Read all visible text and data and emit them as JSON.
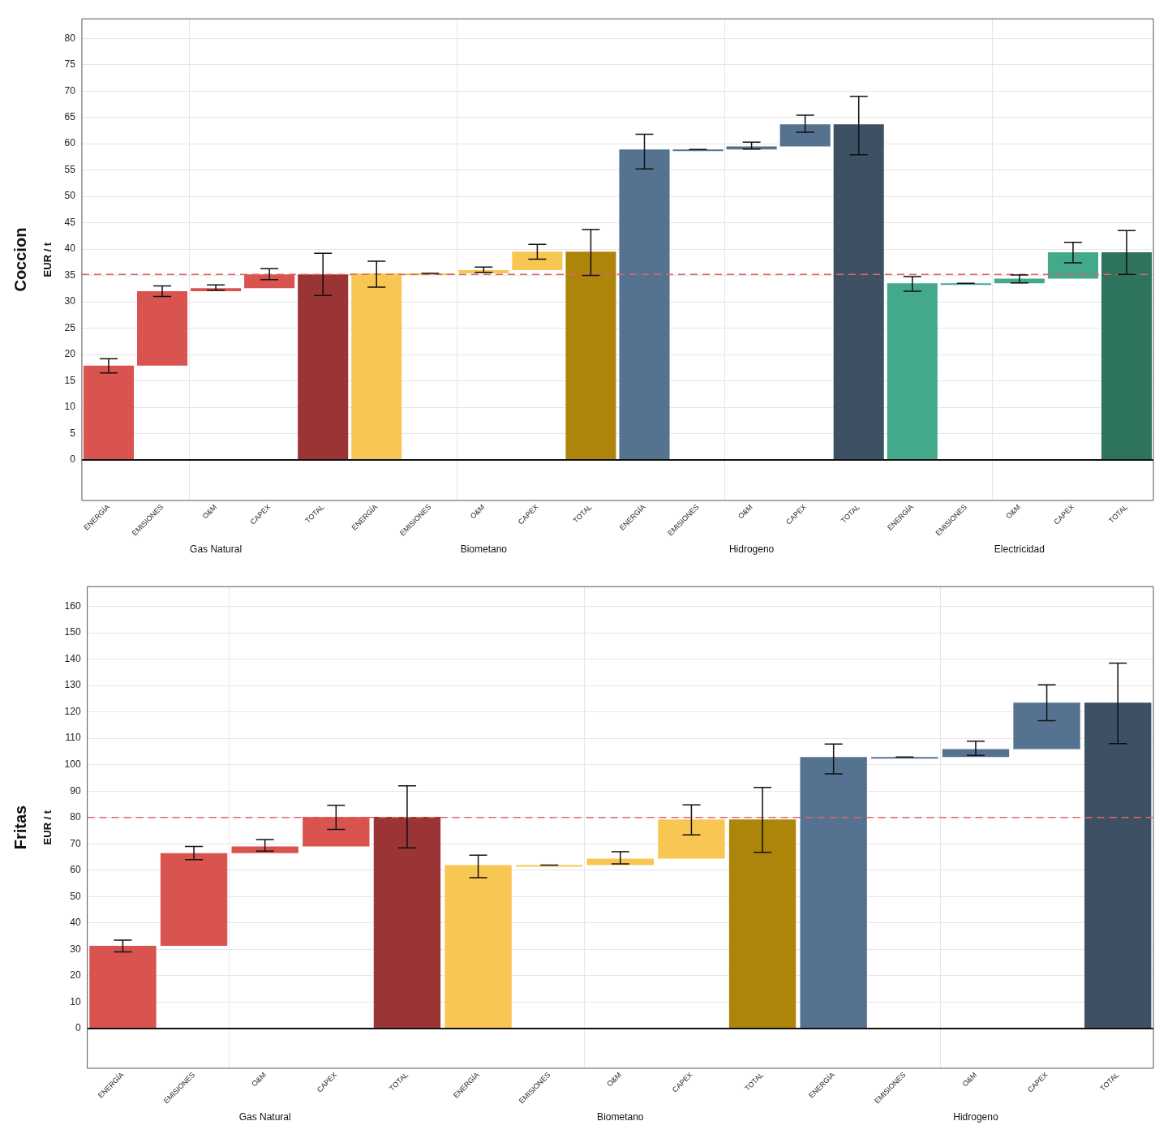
{
  "chart_data": [
    {
      "type": "bar",
      "title": "Coccion",
      "ylabel": "EUR / t",
      "categories": [
        "ENERGÍA",
        "EMISIONES",
        "O&M",
        "CAPEX",
        "TOTAL",
        "ENERGÍA",
        "EMISIONES",
        "O&M",
        "CAPEX",
        "TOTAL",
        "ENERGÍA",
        "EMISIONES",
        "O&M",
        "CAPEX",
        "TOTAL",
        "ENERGÍA",
        "EMISIONES",
        "O&M",
        "CAPEX",
        "TOTAL"
      ],
      "values": [
        17.9,
        14.1,
        0.6,
        2.6,
        35.2,
        35.4,
        0,
        0.6,
        3.5,
        39.5,
        58.9,
        0,
        0.6,
        4.2,
        63.7,
        33.5,
        0,
        0.9,
        5.0,
        39.4
      ],
      "base": [
        0,
        17.9,
        32.0,
        32.6,
        0,
        0,
        35.4,
        35.4,
        36.0,
        0,
        0,
        58.9,
        58.9,
        59.5,
        0,
        0,
        33.5,
        33.5,
        34.4,
        0
      ],
      "errors": [
        [
          16.5,
          19.2
        ],
        [
          31.0,
          33.0
        ],
        [
          32.2,
          33.2
        ],
        [
          34.2,
          36.3
        ],
        [
          31.2,
          39.2
        ],
        [
          32.8,
          37.7
        ],
        [
          35.4,
          35.4
        ],
        [
          35.6,
          36.6
        ],
        [
          38.1,
          40.9
        ],
        [
          35.0,
          43.7
        ],
        [
          55.2,
          61.8
        ],
        [
          58.9,
          58.9
        ],
        [
          59.0,
          60.3
        ],
        [
          62.2,
          65.4
        ],
        [
          57.9,
          69.0
        ],
        [
          32.0,
          34.8
        ],
        [
          33.5,
          33.5
        ],
        [
          33.6,
          35.1
        ],
        [
          37.4,
          41.3
        ],
        [
          35.2,
          43.5
        ]
      ],
      "colors": [
        "#d9534f",
        "#d9534f",
        "#d9534f",
        "#d9534f",
        "#9b3434",
        "#f8c652",
        "#f8c652",
        "#f8c652",
        "#f8c652",
        "#ad850a",
        "#557390",
        "#557390",
        "#557390",
        "#557390",
        "#3e5063",
        "#43a98a",
        "#43a98a",
        "#43a98a",
        "#43a98a",
        "#2e735e"
      ],
      "ylim": [
        -7.7,
        83.7
      ],
      "yticks": [
        0,
        5,
        10,
        15,
        20,
        25,
        30,
        35,
        40,
        45,
        50,
        55,
        60,
        65,
        70,
        75,
        80
      ],
      "ref_lines": [
        {
          "axis": "y",
          "value": 35.2,
          "color": "#e06666",
          "line_style": "dashed"
        }
      ],
      "grid": true,
      "legend": false,
      "annotations": [
        "Gas Natural",
        "Biometano",
        "Hidrogeno",
        "Electricidad"
      ]
    },
    {
      "type": "bar",
      "title": "Fritas",
      "ylabel": "EUR / t",
      "categories": [
        "ENERGÍA",
        "EMISIONES",
        "O&M",
        "CAPEX",
        "TOTAL",
        "ENERGÍA",
        "EMISIONES",
        "O&M",
        "CAPEX",
        "TOTAL",
        "ENERGÍA",
        "EMISIONES",
        "O&M",
        "CAPEX",
        "TOTAL"
      ],
      "values": [
        31.3,
        35.2,
        2.5,
        11.2,
        80.2,
        61.9,
        0,
        2.5,
        14.8,
        79.2,
        102.9,
        0,
        3.0,
        17.6,
        123.5
      ],
      "base": [
        0,
        31.3,
        66.5,
        69.0,
        0,
        0,
        61.9,
        61.9,
        64.4,
        0,
        0,
        102.9,
        102.9,
        105.9,
        0
      ],
      "errors": [
        [
          29.0,
          33.5
        ],
        [
          64.0,
          69.0
        ],
        [
          67.2,
          71.6
        ],
        [
          75.5,
          84.6
        ],
        [
          68.5,
          92.0
        ],
        [
          57.2,
          65.7
        ],
        [
          61.9,
          61.9
        ],
        [
          62.4,
          67.0
        ],
        [
          73.4,
          84.8
        ],
        [
          66.8,
          91.4
        ],
        [
          96.5,
          107.8
        ],
        [
          102.9,
          102.9
        ],
        [
          103.5,
          108.9
        ],
        [
          116.7,
          130.3
        ],
        [
          108.0,
          138.5
        ]
      ],
      "colors": [
        "#d9534f",
        "#d9534f",
        "#d9534f",
        "#d9534f",
        "#9b3434",
        "#f8c652",
        "#f8c652",
        "#f8c652",
        "#f8c652",
        "#ad850a",
        "#557390",
        "#557390",
        "#557390",
        "#557390",
        "#3e5063"
      ],
      "ylim": [
        -15.1,
        167.5
      ],
      "yticks": [
        0,
        10,
        20,
        30,
        40,
        50,
        60,
        70,
        80,
        90,
        100,
        110,
        120,
        130,
        140,
        150,
        160
      ],
      "ref_lines": [
        {
          "axis": "y",
          "value": 80,
          "color": "#e06666",
          "line_style": "dashed"
        }
      ],
      "grid": true,
      "legend": false,
      "annotations": [
        "Gas Natural",
        "Biometano",
        "Hidrogeno"
      ]
    }
  ]
}
